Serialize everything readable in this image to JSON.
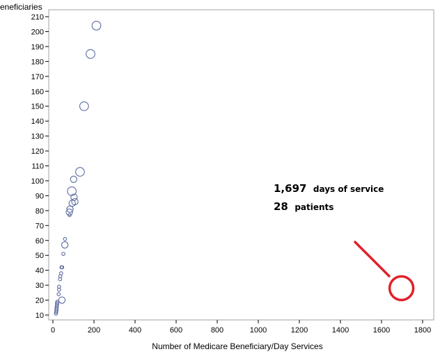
{
  "chart_data": {
    "type": "scatter",
    "title": "",
    "xlabel": "Number of Medicare Beneficiary/Day Services",
    "ylabel": "Beneficiaries",
    "xlim": [
      0,
      1800
    ],
    "ylim": [
      10,
      210
    ],
    "x_ticks": [
      "0",
      "200",
      "400",
      "600",
      "800",
      "1000",
      "1200",
      "1400",
      "1600",
      "1800"
    ],
    "y_ticks": [
      "10",
      "20",
      "30",
      "40",
      "50",
      "60",
      "70",
      "80",
      "90",
      "100",
      "110",
      "120",
      "130",
      "140",
      "150",
      "160",
      "170",
      "180",
      "190",
      "200",
      "210"
    ],
    "grid": false,
    "marker": "open circle (size proportional to value)",
    "point_color": "#5b6aa0",
    "points": [
      {
        "x": 212,
        "y": 204,
        "size": 3
      },
      {
        "x": 183,
        "y": 185,
        "size": 3
      },
      {
        "x": 152,
        "y": 150,
        "size": 3
      },
      {
        "x": 132,
        "y": 106,
        "size": 3
      },
      {
        "x": 101,
        "y": 101,
        "size": 2
      },
      {
        "x": 92,
        "y": 93,
        "size": 3
      },
      {
        "x": 103,
        "y": 89,
        "size": 2
      },
      {
        "x": 107,
        "y": 86,
        "size": 2
      },
      {
        "x": 94,
        "y": 85,
        "size": 2
      },
      {
        "x": 83,
        "y": 81,
        "size": 2
      },
      {
        "x": 80,
        "y": 79,
        "size": 2
      },
      {
        "x": 81,
        "y": 77,
        "size": 1
      },
      {
        "x": 59,
        "y": 61,
        "size": 1
      },
      {
        "x": 58,
        "y": 57,
        "size": 2
      },
      {
        "x": 51,
        "y": 51,
        "size": 1
      },
      {
        "x": 45,
        "y": 42,
        "size": 1
      },
      {
        "x": 42,
        "y": 42,
        "size": 1
      },
      {
        "x": 40,
        "y": 38,
        "size": 1
      },
      {
        "x": 36,
        "y": 36,
        "size": 1
      },
      {
        "x": 35,
        "y": 34,
        "size": 1
      },
      {
        "x": 30,
        "y": 29,
        "size": 1
      },
      {
        "x": 30,
        "y": 27,
        "size": 1
      },
      {
        "x": 28,
        "y": 24,
        "size": 1
      },
      {
        "x": 44,
        "y": 20,
        "size": 2
      },
      {
        "x": 22,
        "y": 19,
        "size": 1
      },
      {
        "x": 20,
        "y": 18,
        "size": 1
      },
      {
        "x": 20,
        "y": 17,
        "size": 1
      },
      {
        "x": 19,
        "y": 16,
        "size": 1
      },
      {
        "x": 18,
        "y": 15,
        "size": 1
      },
      {
        "x": 18,
        "y": 14,
        "size": 1
      },
      {
        "x": 17,
        "y": 13,
        "size": 1
      },
      {
        "x": 16,
        "y": 12,
        "size": 1
      },
      {
        "x": 15,
        "y": 11,
        "size": 1
      }
    ],
    "highlight": {
      "x": 1697,
      "y": 28,
      "color": "#e0202a"
    },
    "annotation": {
      "line1_value": "1,697",
      "line1_text": "days of service",
      "line2_value": "28",
      "line2_text": "patients"
    }
  }
}
